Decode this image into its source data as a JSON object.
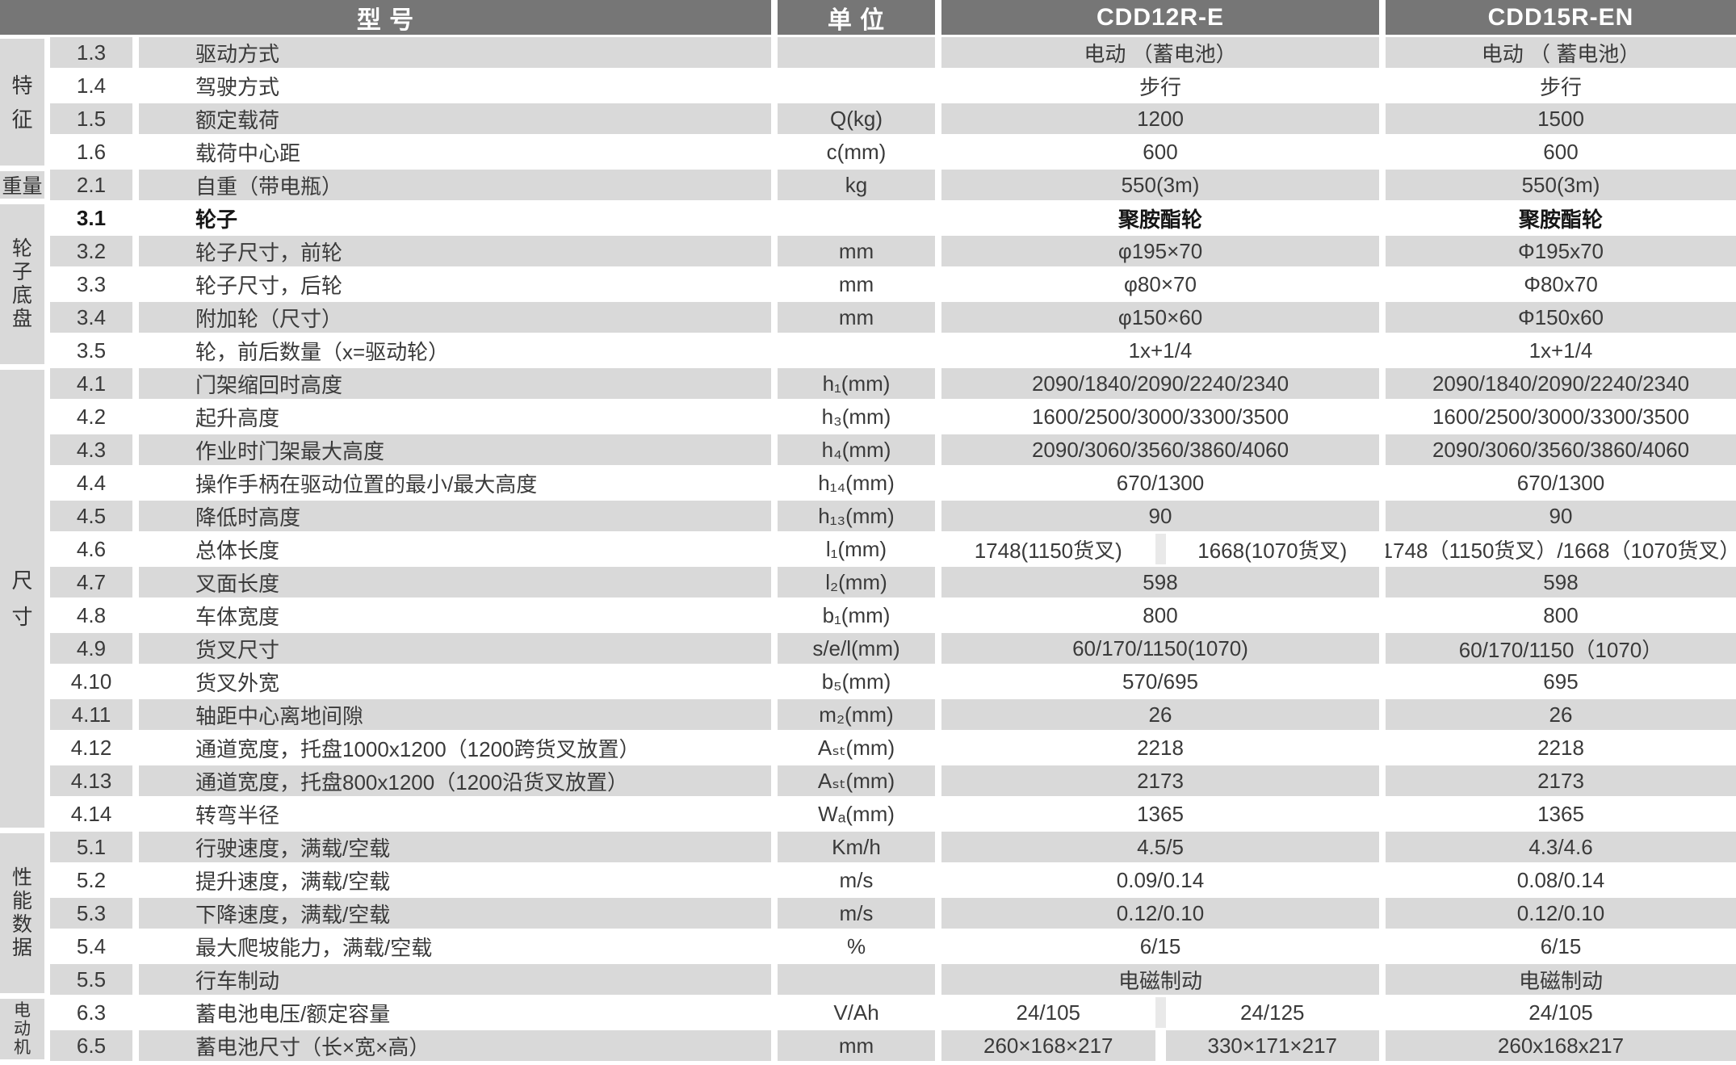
{
  "header": {
    "model_col": "型 号",
    "unit_col": "单 位",
    "models": [
      "CDD12R-E",
      "CDD15R-EN"
    ]
  },
  "colors": {
    "header_bg": "#767676",
    "header_text": "#ffffff",
    "row_gray": "#d9d9d9",
    "text": "#3a3a3a"
  },
  "sections": [
    {
      "label": "特征",
      "layout": "vertical",
      "rows": [
        {
          "num": "1.3",
          "name": "驱动方式",
          "unit": "",
          "values": [
            "电动 （蓄电池）",
            "电动 （ 蓄电池）"
          ],
          "bold": false
        },
        {
          "num": "1.4",
          "name": "驾驶方式",
          "unit": "",
          "values": [
            "步行",
            "步行"
          ],
          "bold": false
        },
        {
          "num": "1.5",
          "name": "额定载荷",
          "unit": "Q(kg)",
          "values": [
            "1200",
            "1500"
          ],
          "bold": false
        },
        {
          "num": "1.6",
          "name": "载荷中心距",
          "unit": "c(mm)",
          "values": [
            "600",
            "600"
          ],
          "bold": false
        }
      ]
    },
    {
      "label": "重量",
      "layout": "horizontal",
      "rows": [
        {
          "num": "2.1",
          "name": "自重（带电瓶）",
          "unit": "kg",
          "values": [
            "550(3m)",
            "550(3m)"
          ],
          "bold": false
        }
      ]
    },
    {
      "label": "轮子底盘",
      "layout": "vertical",
      "rows": [
        {
          "num": "3.1",
          "name": "轮子",
          "unit": "",
          "values": [
            "聚胺酯轮",
            "聚胺酯轮"
          ],
          "bold": true
        },
        {
          "num": "3.2",
          "name": "轮子尺寸，前轮",
          "unit": "mm",
          "values": [
            "φ195×70",
            "Φ195x70"
          ],
          "bold": false
        },
        {
          "num": "3.3",
          "name": "轮子尺寸，后轮",
          "unit": "mm",
          "values": [
            "φ80×70",
            "Φ80x70"
          ],
          "bold": false
        },
        {
          "num": "3.4",
          "name": "附加轮（尺寸）",
          "unit": "mm",
          "values": [
            "φ150×60",
            "Φ150x60"
          ],
          "bold": false
        },
        {
          "num": "3.5",
          "name": "轮，前后数量（x=驱动轮）",
          "unit": "",
          "values": [
            "1x+1/4",
            "1x+1/4"
          ],
          "bold": false
        }
      ]
    },
    {
      "label": "尺寸",
      "layout": "vertical",
      "rows": [
        {
          "num": "4.1",
          "name": "门架缩回时高度",
          "unit": "h₁(mm)",
          "values": [
            "2090/1840/2090/2240/2340",
            "2090/1840/2090/2240/2340"
          ],
          "bold": false
        },
        {
          "num": "4.2",
          "name": "起升高度",
          "unit": "h₃(mm)",
          "values": [
            "1600/2500/3000/3300/3500",
            "1600/2500/3000/3300/3500"
          ],
          "bold": false
        },
        {
          "num": "4.3",
          "name": "作业时门架最大高度",
          "unit": "h₄(mm)",
          "values": [
            "2090/3060/3560/3860/4060",
            "2090/3060/3560/3860/4060"
          ],
          "bold": false
        },
        {
          "num": "4.4",
          "name": "操作手柄在驱动位置的最小/最大高度",
          "unit": "h₁₄(mm)",
          "values": [
            "670/1300",
            "670/1300"
          ],
          "bold": false
        },
        {
          "num": "4.5",
          "name": "降低时高度",
          "unit": "h₁₃(mm)",
          "values": [
            "90",
            "90"
          ],
          "bold": false
        },
        {
          "num": "4.6",
          "name": "总体长度",
          "unit": "l₁(mm)",
          "values": [
            [
              "1748(1150货叉)",
              "1668(1070货叉)"
            ],
            "1748（1150货叉）/1668（1070货叉）"
          ],
          "bold": false
        },
        {
          "num": "4.7",
          "name": "叉面长度",
          "unit": "l₂(mm)",
          "values": [
            "598",
            "598"
          ],
          "bold": false
        },
        {
          "num": "4.8",
          "name": "车体宽度",
          "unit": "b₁(mm)",
          "values": [
            "800",
            "800"
          ],
          "bold": false
        },
        {
          "num": "4.9",
          "name": "货叉尺寸",
          "unit": "s/e/l(mm)",
          "values": [
            "60/170/1150(1070)",
            "60/170/1150（1070）"
          ],
          "bold": false
        },
        {
          "num": "4.10",
          "name": "货叉外宽",
          "unit": "b₅(mm)",
          "values": [
            "570/695",
            "695"
          ],
          "bold": false
        },
        {
          "num": "4.11",
          "name": "轴距中心离地间隙",
          "unit": "m₂(mm)",
          "values": [
            "26",
            "26"
          ],
          "bold": false
        },
        {
          "num": "4.12",
          "name": "通道宽度，托盘1000x1200（1200跨货叉放置）",
          "unit": "Aₛₜ(mm)",
          "values": [
            "2218",
            "2218"
          ],
          "bold": false
        },
        {
          "num": "4.13",
          "name": "通道宽度，托盘800x1200（1200沿货叉放置）",
          "unit": "Aₛₜ(mm)",
          "values": [
            "2173",
            "2173"
          ],
          "bold": false
        },
        {
          "num": "4.14",
          "name": "转弯半径",
          "unit": "Wₐ(mm)",
          "values": [
            "1365",
            "1365"
          ],
          "bold": false
        }
      ]
    },
    {
      "label": "性能数据",
      "layout": "vertical",
      "rows": [
        {
          "num": "5.1",
          "name": "行驶速度，满载/空载",
          "unit": "Km/h",
          "values": [
            "4.5/5",
            "4.3/4.6"
          ],
          "bold": false
        },
        {
          "num": "5.2",
          "name": "提升速度，满载/空载",
          "unit": "m/s",
          "values": [
            "0.09/0.14",
            "0.08/0.14"
          ],
          "bold": false
        },
        {
          "num": "5.3",
          "name": "下降速度，满载/空载",
          "unit": "m/s",
          "values": [
            "0.12/0.10",
            "0.12/0.10"
          ],
          "bold": false
        },
        {
          "num": "5.4",
          "name": "最大爬坡能力，满载/空载",
          "unit": "%",
          "values": [
            "6/15",
            "6/15"
          ],
          "bold": false
        },
        {
          "num": "5.5",
          "name": "行车制动",
          "unit": "",
          "values": [
            "电磁制动",
            "电磁制动"
          ],
          "bold": false
        }
      ]
    },
    {
      "label": "电动机",
      "layout": "vertical",
      "rows": [
        {
          "num": "6.3",
          "name": "蓄电池电压/额定容量",
          "unit": "V/Ah",
          "values": [
            [
              "24/105",
              "24/125"
            ],
            "24/105"
          ],
          "bold": false
        },
        {
          "num": "6.5",
          "name": "蓄电池尺寸（长×宽×高）",
          "unit": "mm",
          "values": [
            [
              "260×168×217",
              "330×171×217"
            ],
            "260x168x217"
          ],
          "bold": false
        }
      ]
    }
  ]
}
